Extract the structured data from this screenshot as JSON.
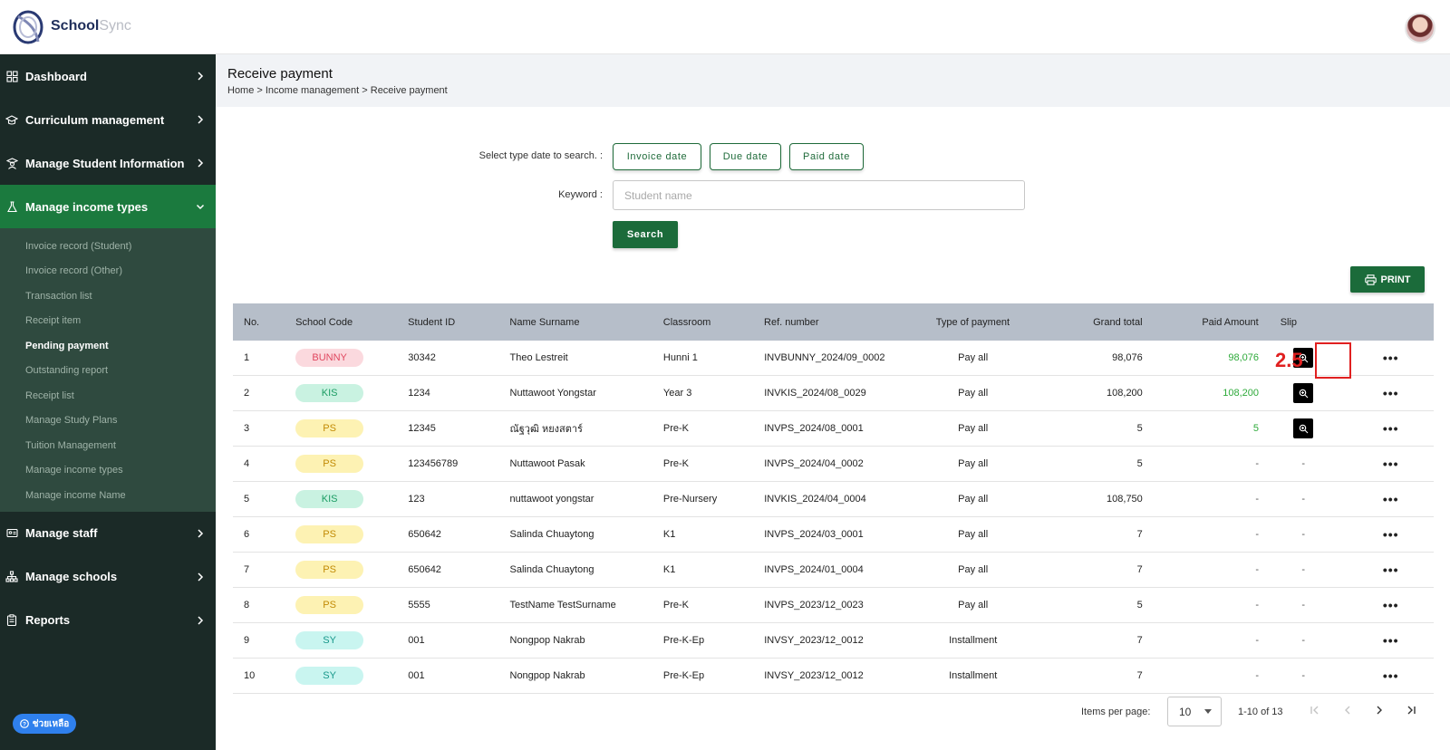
{
  "app": {
    "name_part1": "School",
    "name_part2": "Sync"
  },
  "sidebar": {
    "items": [
      {
        "label": "Dashboard",
        "icon": "grid-icon"
      },
      {
        "label": "Curriculum management",
        "icon": "graduation-cap-icon"
      },
      {
        "label": "Manage Student Information",
        "icon": "student-icon"
      },
      {
        "label": "Manage income types",
        "icon": "flask-icon",
        "expanded": true
      },
      {
        "label": "Manage staff",
        "icon": "id-card-icon"
      },
      {
        "label": "Manage schools",
        "icon": "sitemap-icon"
      },
      {
        "label": "Reports",
        "icon": "clipboard-icon"
      }
    ],
    "submenu": [
      "Invoice record (Student)",
      "Invoice record (Other)",
      "Transaction list",
      "Receipt item",
      "Pending payment",
      "Outstanding report",
      "Receipt list",
      "Manage Study Plans",
      "Tuition Management",
      "Manage income types",
      "Manage income Name"
    ],
    "current_sub": "Pending payment",
    "help_label": "ช่วยเหลือ"
  },
  "header": {
    "title": "Receive payment",
    "breadcrumb": "Home > Income management > Receive payment"
  },
  "search": {
    "date_type_label": "Select type date to search. :",
    "date_buttons": [
      "Invoice date",
      "Due date",
      "Paid date"
    ],
    "keyword_label": "Keyword :",
    "keyword_placeholder": "Student name",
    "keyword_value": "",
    "search_label": "Search"
  },
  "print_label": "PRINT",
  "table": {
    "columns": [
      "No.",
      "School Code",
      "Student ID",
      "Name Surname",
      "Classroom",
      "Ref. number",
      "Type of payment",
      "Grand total",
      "Paid Amount",
      "Slip"
    ],
    "rows": [
      {
        "no": "1",
        "code": "BUNNY",
        "code_style": "bunny",
        "sid": "30342",
        "name": "Theo Lestreit",
        "classroom": "Hunni 1",
        "ref": "INVBUNNY_2024/09_0002",
        "type": "Pay all",
        "grand": "98,076",
        "paid": "98,076",
        "slip": true
      },
      {
        "no": "2",
        "code": "KIS",
        "code_style": "kis",
        "sid": "1234",
        "name": "Nuttawoot Yongstar",
        "classroom": "Year 3",
        "ref": "INVKIS_2024/08_0029",
        "type": "Pay all",
        "grand": "108,200",
        "paid": "108,200",
        "slip": true
      },
      {
        "no": "3",
        "code": "PS",
        "code_style": "ps",
        "sid": "12345",
        "name": "ณัฐวุฒิ หยงสตาร์",
        "classroom": "Pre-K",
        "ref": "INVPS_2024/08_0001",
        "type": "Pay all",
        "grand": "5",
        "paid": "5",
        "slip": true
      },
      {
        "no": "4",
        "code": "PS",
        "code_style": "ps",
        "sid": "123456789",
        "name": "Nuttawoot Pasak",
        "classroom": "Pre-K",
        "ref": "INVPS_2024/04_0002",
        "type": "Pay all",
        "grand": "5",
        "paid": "-",
        "slip": false
      },
      {
        "no": "5",
        "code": "KIS",
        "code_style": "kis",
        "sid": "123",
        "name": "nuttawoot yongstar",
        "classroom": "Pre-Nursery",
        "ref": "INVKIS_2024/04_0004",
        "type": "Pay all",
        "grand": "108,750",
        "paid": "-",
        "slip": false
      },
      {
        "no": "6",
        "code": "PS",
        "code_style": "ps",
        "sid": "650642",
        "name": "Salinda Chuaytong",
        "classroom": "K1",
        "ref": "INVPS_2024/03_0001",
        "type": "Pay all",
        "grand": "7",
        "paid": "-",
        "slip": false
      },
      {
        "no": "7",
        "code": "PS",
        "code_style": "ps",
        "sid": "650642",
        "name": "Salinda Chuaytong",
        "classroom": "K1",
        "ref": "INVPS_2024/01_0004",
        "type": "Pay all",
        "grand": "7",
        "paid": "-",
        "slip": false
      },
      {
        "no": "8",
        "code": "PS",
        "code_style": "ps",
        "sid": "5555",
        "name": "TestName TestSurname",
        "classroom": "Pre-K",
        "ref": "INVPS_2023/12_0023",
        "type": "Pay all",
        "grand": "5",
        "paid": "-",
        "slip": false
      },
      {
        "no": "9",
        "code": "SY",
        "code_style": "sy",
        "sid": "001",
        "name": "Nongpop Nakrab",
        "classroom": "Pre-K-Ep",
        "ref": "INVSY_2023/12_0012",
        "type": "Installment",
        "grand": "7",
        "paid": "-",
        "slip": false
      },
      {
        "no": "10",
        "code": "SY",
        "code_style": "sy",
        "sid": "001",
        "name": "Nongpop Nakrab",
        "classroom": "Pre-K-Ep",
        "ref": "INVSY_2023/12_0012",
        "type": "Installment",
        "grand": "7",
        "paid": "-",
        "slip": false
      }
    ],
    "slip_empty": "-",
    "paid_green_color": "#2eaa3a"
  },
  "annotation": {
    "label": "2.5"
  },
  "pagination": {
    "items_per_page_label": "Items per page:",
    "items_per_page": "10",
    "range": "1-10 of 13"
  },
  "colors": {
    "sidebar_bg": "#1b2a27",
    "active_green": "#1b7a3e",
    "primary_button": "#1b6b3a",
    "table_header": "#b6bec9",
    "annotation_red": "#e02020"
  }
}
